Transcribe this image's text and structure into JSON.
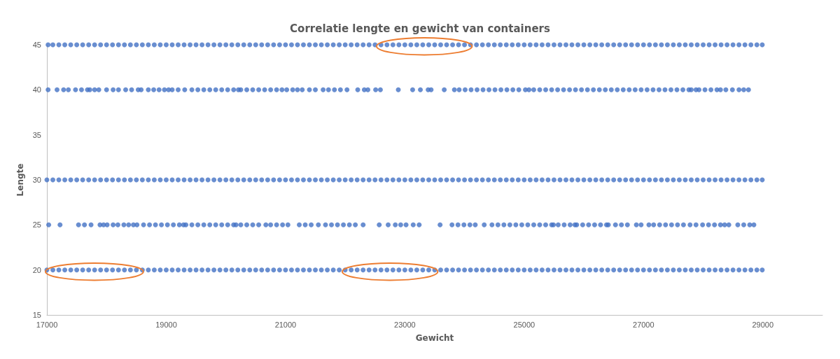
{
  "chart_data": {
    "type": "scatter",
    "title": "Correlatie lengte en gewicht van containers",
    "xlabel": "Gewicht",
    "ylabel": "Lengte",
    "xlim": [
      17000,
      30000
    ],
    "xticks": [
      17000,
      19000,
      21000,
      23000,
      25000,
      27000,
      29000
    ],
    "ylim": [
      15,
      45
    ],
    "yticks": [
      15,
      20,
      25,
      30,
      35,
      40,
      45
    ],
    "grid": false,
    "marker": "circle",
    "series": [
      {
        "color": "#4472c4",
        "x": [
          17020,
          17100,
          17200,
          17300,
          17400,
          17500,
          17600,
          17700,
          17800,
          17900,
          18000,
          18100,
          18200,
          18300,
          18400,
          18500,
          18600,
          18700,
          18800,
          18900,
          19000,
          19100,
          19200,
          19300,
          19400,
          19500,
          19600,
          19700,
          19800,
          19900,
          20000,
          20100,
          20200,
          20300,
          20400,
          20500,
          20600,
          20700,
          20800,
          20900,
          21000,
          21100,
          21200,
          21300,
          21400,
          21500,
          21600,
          21700,
          21800,
          21900,
          22000,
          22100,
          22200,
          22300,
          22400,
          22500,
          22600,
          22700,
          22800,
          22900,
          23000,
          23100,
          23200,
          23300,
          23400,
          23500,
          23600,
          23700,
          23800,
          23900,
          24000,
          24100,
          24200,
          24300,
          24400,
          24500,
          24600,
          24700,
          24800,
          24900,
          25000,
          25100,
          25200,
          25300,
          25400,
          25500,
          25600,
          25700,
          25800,
          25900,
          26000,
          26100,
          26200,
          26300,
          26400,
          26500,
          26600,
          26700,
          26800,
          26900,
          27000,
          27100,
          27200,
          27300,
          27400,
          27500,
          27600,
          27700,
          27800,
          27900,
          28000,
          28100,
          28200,
          28300,
          28400,
          28500,
          28600,
          28700,
          28800,
          28900,
          28990
        ],
        "values": [
          45,
          45,
          45,
          45,
          45,
          45,
          45,
          45,
          45,
          45,
          45,
          45,
          45,
          45,
          45,
          45,
          45,
          45,
          45,
          45,
          45,
          45,
          45,
          45,
          45,
          45,
          45,
          45,
          45,
          45,
          45,
          45,
          45,
          45,
          45,
          45,
          45,
          45,
          45,
          45,
          45,
          45,
          45,
          45,
          45,
          45,
          45,
          45,
          45,
          45,
          45,
          45,
          45,
          45,
          45,
          45,
          45,
          45,
          45,
          45,
          45,
          45,
          45,
          45,
          45,
          45,
          45,
          45,
          45,
          45,
          45,
          45,
          45,
          45,
          45,
          45,
          45,
          45,
          45,
          45,
          45,
          45,
          45,
          45,
          45,
          45,
          45,
          45,
          45,
          45,
          45,
          45,
          45,
          45,
          45,
          45,
          45,
          45,
          45,
          45,
          45,
          45,
          45,
          45,
          45,
          45,
          45,
          45,
          45,
          45,
          45,
          45,
          45,
          45,
          45,
          45,
          45,
          45,
          45,
          45,
          45
        ]
      },
      {
        "color": "#4472c4",
        "x": [
          17020,
          17170,
          17280,
          17360,
          17480,
          17580,
          17680,
          17720,
          17800,
          17870,
          18000,
          18110,
          18200,
          18320,
          18420,
          18530,
          18580,
          18700,
          18790,
          18880,
          18970,
          19040,
          19100,
          19200,
          19310,
          19430,
          19530,
          19630,
          19730,
          19830,
          19930,
          20030,
          20130,
          20210,
          20250,
          20350,
          20450,
          20550,
          20650,
          20750,
          20850,
          20940,
          21020,
          21120,
          21200,
          21280,
          21400,
          21500,
          21630,
          21720,
          21820,
          21920,
          22030,
          22210,
          22320,
          22380,
          22510,
          22590,
          22890,
          23130,
          23260,
          23390,
          23440,
          23660,
          23830,
          23910,
          24010,
          24110,
          24210,
          24310,
          24410,
          24510,
          24610,
          24710,
          24810,
          24910,
          25020,
          25080,
          25160,
          25260,
          25360,
          25460,
          25560,
          25660,
          25760,
          25860,
          25960,
          26060,
          26160,
          26260,
          26360,
          26460,
          26560,
          26660,
          26760,
          26860,
          26960,
          27060,
          27160,
          27260,
          27360,
          27460,
          27560,
          27660,
          27760,
          27800,
          27880,
          27930,
          28030,
          28130,
          28230,
          28290,
          28380,
          28490,
          28600,
          28680,
          28760
        ],
        "values": [
          40,
          40,
          40,
          40,
          40,
          40,
          40,
          40,
          40,
          40,
          40,
          40,
          40,
          40,
          40,
          40,
          40,
          40,
          40,
          40,
          40,
          40,
          40,
          40,
          40,
          40,
          40,
          40,
          40,
          40,
          40,
          40,
          40,
          40,
          40,
          40,
          40,
          40,
          40,
          40,
          40,
          40,
          40,
          40,
          40,
          40,
          40,
          40,
          40,
          40,
          40,
          40,
          40,
          40,
          40,
          40,
          40,
          40,
          40,
          40,
          40,
          40,
          40,
          40,
          40,
          40,
          40,
          40,
          40,
          40,
          40,
          40,
          40,
          40,
          40,
          40,
          40,
          40,
          40,
          40,
          40,
          40,
          40,
          40,
          40,
          40,
          40,
          40,
          40,
          40,
          40,
          40,
          40,
          40,
          40,
          40,
          40,
          40,
          40,
          40,
          40,
          40,
          40,
          40,
          40,
          40,
          40,
          40,
          40,
          40,
          40,
          40,
          40,
          40,
          40,
          40,
          40
        ]
      },
      {
        "color": "#4472c4",
        "x": [
          17000,
          17100,
          17200,
          17300,
          17400,
          17500,
          17600,
          17700,
          17800,
          17900,
          18000,
          18100,
          18200,
          18300,
          18400,
          18500,
          18600,
          18700,
          18800,
          18900,
          19000,
          19100,
          19200,
          19300,
          19400,
          19500,
          19600,
          19700,
          19800,
          19900,
          20000,
          20100,
          20200,
          20300,
          20400,
          20500,
          20600,
          20700,
          20800,
          20900,
          21000,
          21100,
          21200,
          21300,
          21400,
          21500,
          21600,
          21700,
          21800,
          21900,
          22000,
          22100,
          22200,
          22300,
          22400,
          22500,
          22600,
          22700,
          22800,
          22900,
          23000,
          23100,
          23200,
          23300,
          23400,
          23500,
          23600,
          23700,
          23800,
          23900,
          24000,
          24100,
          24200,
          24300,
          24400,
          24500,
          24600,
          24700,
          24800,
          24900,
          25000,
          25100,
          25200,
          25300,
          25400,
          25500,
          25600,
          25700,
          25800,
          25900,
          26000,
          26100,
          26200,
          26300,
          26400,
          26500,
          26600,
          26700,
          26800,
          26900,
          27000,
          27100,
          27200,
          27300,
          27400,
          27500,
          27600,
          27700,
          27800,
          27900,
          28000,
          28100,
          28200,
          28300,
          28400,
          28500,
          28600,
          28700,
          28800,
          28900,
          28990
        ],
        "values": [
          30,
          30,
          30,
          30,
          30,
          30,
          30,
          30,
          30,
          30,
          30,
          30,
          30,
          30,
          30,
          30,
          30,
          30,
          30,
          30,
          30,
          30,
          30,
          30,
          30,
          30,
          30,
          30,
          30,
          30,
          30,
          30,
          30,
          30,
          30,
          30,
          30,
          30,
          30,
          30,
          30,
          30,
          30,
          30,
          30,
          30,
          30,
          30,
          30,
          30,
          30,
          30,
          30,
          30,
          30,
          30,
          30,
          30,
          30,
          30,
          30,
          30,
          30,
          30,
          30,
          30,
          30,
          30,
          30,
          30,
          30,
          30,
          30,
          30,
          30,
          30,
          30,
          30,
          30,
          30,
          30,
          30,
          30,
          30,
          30,
          30,
          30,
          30,
          30,
          30,
          30,
          30,
          30,
          30,
          30,
          30,
          30,
          30,
          30,
          30,
          30,
          30,
          30,
          30,
          30,
          30,
          30,
          30,
          30,
          30,
          30,
          30,
          30,
          30,
          30,
          30,
          30,
          30,
          30,
          30,
          30
        ]
      },
      {
        "color": "#4472c4",
        "x": [
          17030,
          17220,
          17530,
          17630,
          17740,
          17890,
          17950,
          18010,
          18110,
          18190,
          18290,
          18370,
          18450,
          18510,
          18620,
          18720,
          18820,
          18920,
          19020,
          19120,
          19220,
          19290,
          19330,
          19430,
          19530,
          19630,
          19730,
          19830,
          19930,
          20030,
          20130,
          20170,
          20250,
          20350,
          20450,
          20550,
          20670,
          20750,
          20850,
          20950,
          21040,
          21230,
          21330,
          21430,
          21550,
          21670,
          21770,
          21870,
          21970,
          22070,
          22170,
          22300,
          22570,
          22720,
          22840,
          22930,
          23020,
          23140,
          23240,
          23590,
          23790,
          23890,
          23990,
          24090,
          24180,
          24330,
          24460,
          24560,
          24660,
          24760,
          24860,
          24960,
          25060,
          25160,
          25260,
          25360,
          25460,
          25490,
          25570,
          25670,
          25770,
          25850,
          25880,
          25980,
          26080,
          26180,
          26280,
          26380,
          26410,
          26530,
          26630,
          26730,
          26880,
          26960,
          27090,
          27170,
          27270,
          27370,
          27470,
          27570,
          27670,
          27780,
          27880,
          27990,
          28090,
          28190,
          28290,
          28360,
          28430,
          28580,
          28680,
          28780,
          28850
        ],
        "values": [
          25,
          25,
          25,
          25,
          25,
          25,
          25,
          25,
          25,
          25,
          25,
          25,
          25,
          25,
          25,
          25,
          25,
          25,
          25,
          25,
          25,
          25,
          25,
          25,
          25,
          25,
          25,
          25,
          25,
          25,
          25,
          25,
          25,
          25,
          25,
          25,
          25,
          25,
          25,
          25,
          25,
          25,
          25,
          25,
          25,
          25,
          25,
          25,
          25,
          25,
          25,
          25,
          25,
          25,
          25,
          25,
          25,
          25,
          25,
          25,
          25,
          25,
          25,
          25,
          25,
          25,
          25,
          25,
          25,
          25,
          25,
          25,
          25,
          25,
          25,
          25,
          25,
          25,
          25,
          25,
          25,
          25,
          25,
          25,
          25,
          25,
          25,
          25,
          25,
          25,
          25,
          25,
          25,
          25,
          25,
          25,
          25,
          25,
          25,
          25,
          25,
          25,
          25,
          25,
          25,
          25,
          25,
          25,
          25,
          25,
          25,
          25,
          25
        ]
      },
      {
        "color": "#4472c4",
        "x": [
          17000,
          17100,
          17200,
          17300,
          17400,
          17500,
          17600,
          17700,
          17800,
          17900,
          18000,
          18100,
          18200,
          18300,
          18400,
          18500,
          18600,
          18700,
          18800,
          18900,
          19000,
          19100,
          19200,
          19300,
          19400,
          19500,
          19600,
          19700,
          19800,
          19900,
          20000,
          20100,
          20200,
          20300,
          20400,
          20500,
          20600,
          20700,
          20800,
          20900,
          21000,
          21100,
          21200,
          21300,
          21400,
          21500,
          21600,
          21700,
          21800,
          21900,
          22000,
          22100,
          22200,
          22300,
          22400,
          22500,
          22600,
          22700,
          22800,
          22900,
          23000,
          23100,
          23200,
          23300,
          23400,
          23500,
          23600,
          23700,
          23800,
          23900,
          24000,
          24100,
          24200,
          24300,
          24400,
          24500,
          24600,
          24700,
          24800,
          24900,
          25000,
          25100,
          25200,
          25300,
          25400,
          25500,
          25600,
          25700,
          25800,
          25900,
          26000,
          26100,
          26200,
          26300,
          26400,
          26500,
          26600,
          26700,
          26800,
          26900,
          27000,
          27100,
          27200,
          27300,
          27400,
          27500,
          27600,
          27700,
          27800,
          27900,
          28000,
          28100,
          28200,
          28300,
          28400,
          28500,
          28600,
          28700,
          28800,
          28900,
          28990
        ],
        "values": [
          20,
          20,
          20,
          20,
          20,
          20,
          20,
          20,
          20,
          20,
          20,
          20,
          20,
          20,
          20,
          20,
          20,
          20,
          20,
          20,
          20,
          20,
          20,
          20,
          20,
          20,
          20,
          20,
          20,
          20,
          20,
          20,
          20,
          20,
          20,
          20,
          20,
          20,
          20,
          20,
          20,
          20,
          20,
          20,
          20,
          20,
          20,
          20,
          20,
          20,
          20,
          20,
          20,
          20,
          20,
          20,
          20,
          20,
          20,
          20,
          20,
          20,
          20,
          20,
          20,
          20,
          20,
          20,
          20,
          20,
          20,
          20,
          20,
          20,
          20,
          20,
          20,
          20,
          20,
          20,
          20,
          20,
          20,
          20,
          20,
          20,
          20,
          20,
          20,
          20,
          20,
          20,
          20,
          20,
          20,
          20,
          20,
          20,
          20,
          20,
          20,
          20,
          20,
          20,
          20,
          20,
          20,
          20,
          20,
          20,
          20,
          20,
          20,
          20,
          20,
          20,
          20,
          20,
          20,
          20,
          20
        ]
      }
    ]
  }
}
